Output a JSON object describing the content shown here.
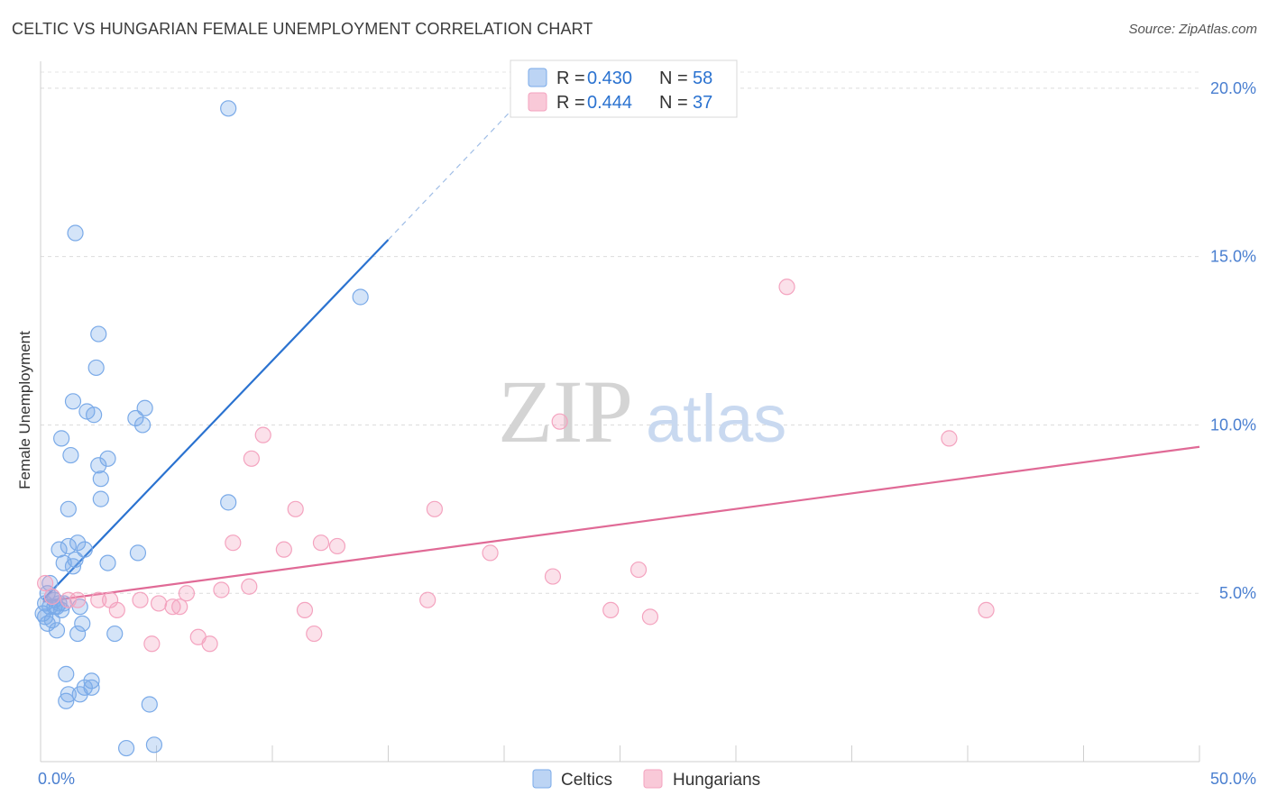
{
  "chart_data": {
    "type": "scatter",
    "title": "CELTIC VS HUNGARIAN FEMALE UNEMPLOYMENT CORRELATION CHART",
    "source": "Source: ZipAtlas.com",
    "ylabel": "Female Unemployment",
    "xlim": [
      0,
      50
    ],
    "ylim": [
      0,
      20.8
    ],
    "x_tick_labels": [
      {
        "value": 0,
        "label": "0.0%"
      },
      {
        "value": 50,
        "label": "50.0%"
      }
    ],
    "y_tick_labels": [
      {
        "value": 5,
        "label": "5.0%"
      },
      {
        "value": 10,
        "label": "10.0%"
      },
      {
        "value": 15,
        "label": "15.0%"
      },
      {
        "value": 20,
        "label": "20.0%"
      }
    ],
    "watermark": {
      "zip": "ZIP",
      "atlas": "atlas"
    },
    "legend": [
      {
        "r_label": "R =",
        "r_value": "0.430",
        "n_label": "N =",
        "n_value": "58"
      },
      {
        "r_label": "R =",
        "r_value": "0.444",
        "n_label": "N =",
        "n_value": "37"
      }
    ],
    "series": [
      {
        "name": "Celtics",
        "color": "#7aaae8",
        "line_color": "#2a72d0",
        "trend": {
          "x0": 0.1,
          "y0": 4.8,
          "x1": 15.0,
          "y1": 15.5,
          "dash_x1": 21.5,
          "dash_y1": 20.2
        },
        "points": [
          [
            8.1,
            19.4
          ],
          [
            1.5,
            15.7
          ],
          [
            13.8,
            13.8
          ],
          [
            2.5,
            12.7
          ],
          [
            2.4,
            11.7
          ],
          [
            1.4,
            10.7
          ],
          [
            4.5,
            10.5
          ],
          [
            2.0,
            10.4
          ],
          [
            2.3,
            10.3
          ],
          [
            4.1,
            10.2
          ],
          [
            4.4,
            10.0
          ],
          [
            0.9,
            9.6
          ],
          [
            1.3,
            9.1
          ],
          [
            2.9,
            9.0
          ],
          [
            2.5,
            8.8
          ],
          [
            2.6,
            8.4
          ],
          [
            2.6,
            7.8
          ],
          [
            8.1,
            7.7
          ],
          [
            1.2,
            7.5
          ],
          [
            1.6,
            6.5
          ],
          [
            0.8,
            6.3
          ],
          [
            1.2,
            6.4
          ],
          [
            1.9,
            6.3
          ],
          [
            4.2,
            6.2
          ],
          [
            1.5,
            6.0
          ],
          [
            1.0,
            5.9
          ],
          [
            1.4,
            5.8
          ],
          [
            2.9,
            5.9
          ],
          [
            0.3,
            5.0
          ],
          [
            0.5,
            4.9
          ],
          [
            0.2,
            4.7
          ],
          [
            0.4,
            4.6
          ],
          [
            0.7,
            4.6
          ],
          [
            0.9,
            4.5
          ],
          [
            0.6,
            4.6
          ],
          [
            0.1,
            4.4
          ],
          [
            0.2,
            4.3
          ],
          [
            0.5,
            4.2
          ],
          [
            0.3,
            4.1
          ],
          [
            1.8,
            4.1
          ],
          [
            0.7,
            3.9
          ],
          [
            1.6,
            3.8
          ],
          [
            3.2,
            3.8
          ],
          [
            1.1,
            2.6
          ],
          [
            2.2,
            2.4
          ],
          [
            1.9,
            2.2
          ],
          [
            2.2,
            2.2
          ],
          [
            1.2,
            2.0
          ],
          [
            1.7,
            2.0
          ],
          [
            1.1,
            1.8
          ],
          [
            4.7,
            1.7
          ],
          [
            3.7,
            0.4
          ],
          [
            4.9,
            0.5
          ],
          [
            1.7,
            4.6
          ],
          [
            0.8,
            4.7
          ],
          [
            0.4,
            5.3
          ],
          [
            1.0,
            4.7
          ],
          [
            0.6,
            4.8
          ]
        ]
      },
      {
        "name": "Hungarians",
        "color": "#f4a3bf",
        "line_color": "#e06a96",
        "trend": {
          "x0": 0.1,
          "y0": 4.75,
          "x1": 50.0,
          "y1": 9.35
        },
        "points": [
          [
            32.2,
            14.1
          ],
          [
            9.6,
            9.7
          ],
          [
            22.4,
            10.1
          ],
          [
            39.2,
            9.6
          ],
          [
            9.1,
            9.0
          ],
          [
            17.0,
            7.5
          ],
          [
            11.0,
            7.5
          ],
          [
            8.3,
            6.5
          ],
          [
            12.1,
            6.5
          ],
          [
            12.8,
            6.4
          ],
          [
            10.5,
            6.3
          ],
          [
            19.4,
            6.2
          ],
          [
            25.8,
            5.7
          ],
          [
            22.1,
            5.5
          ],
          [
            0.2,
            5.3
          ],
          [
            9.0,
            5.2
          ],
          [
            7.8,
            5.1
          ],
          [
            6.3,
            5.0
          ],
          [
            16.7,
            4.8
          ],
          [
            4.3,
            4.8
          ],
          [
            3.0,
            4.8
          ],
          [
            5.1,
            4.7
          ],
          [
            2.5,
            4.8
          ],
          [
            1.6,
            4.8
          ],
          [
            1.2,
            4.8
          ],
          [
            5.7,
            4.6
          ],
          [
            6.0,
            4.6
          ],
          [
            3.3,
            4.5
          ],
          [
            11.4,
            4.5
          ],
          [
            24.6,
            4.5
          ],
          [
            40.8,
            4.5
          ],
          [
            26.3,
            4.3
          ],
          [
            11.8,
            3.8
          ],
          [
            6.8,
            3.7
          ],
          [
            7.3,
            3.5
          ],
          [
            4.8,
            3.5
          ],
          [
            0.5,
            4.9
          ]
        ]
      }
    ]
  }
}
